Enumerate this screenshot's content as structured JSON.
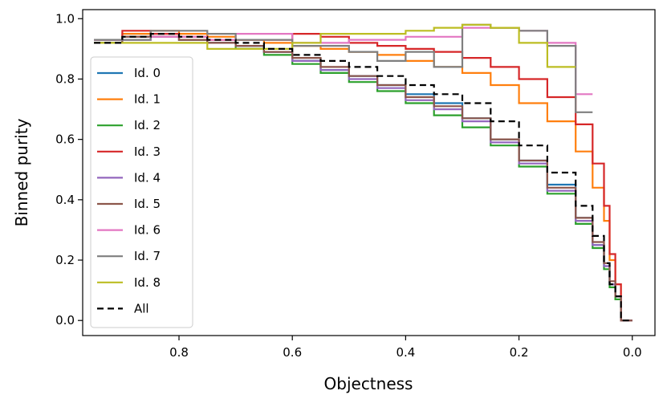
{
  "chart_data": {
    "type": "line",
    "drawstyle": "steps",
    "xlabel": "Objectness",
    "ylabel": "Binned purity",
    "xlim": [
      0.97,
      -0.04
    ],
    "ylim": [
      -0.05,
      1.03
    ],
    "xticks": [
      0.8,
      0.6,
      0.4,
      0.2,
      0.0
    ],
    "xtick_labels": [
      "0.8",
      "0.6",
      "0.4",
      "0.2",
      "0.0"
    ],
    "yticks": [
      0.0,
      0.2,
      0.4,
      0.6,
      0.8,
      1.0
    ],
    "ytick_labels": [
      "0.0",
      "0.2",
      "0.4",
      "0.6",
      "0.8",
      "1.0"
    ],
    "grid": false,
    "legend_position": "left",
    "series": [
      {
        "name": "Id. 0",
        "color": "#1f77b4",
        "dash": "solid",
        "x": [
          0.95,
          0.9,
          0.85,
          0.8,
          0.75,
          0.7,
          0.65,
          0.6,
          0.55,
          0.5,
          0.45,
          0.4,
          0.35,
          0.3,
          0.25,
          0.2,
          0.15,
          0.1,
          0.07,
          0.05,
          0.04,
          0.03,
          0.02,
          0.0
        ],
        "y": [
          0.92,
          0.93,
          0.94,
          0.93,
          0.92,
          0.91,
          0.89,
          0.86,
          0.83,
          0.81,
          0.78,
          0.75,
          0.72,
          0.67,
          0.6,
          0.53,
          0.45,
          0.34,
          0.25,
          0.18,
          0.12,
          0.08,
          0.0,
          0.0
        ]
      },
      {
        "name": "Id. 1",
        "color": "#ff7f0e",
        "dash": "solid",
        "x": [
          0.95,
          0.9,
          0.85,
          0.8,
          0.75,
          0.7,
          0.65,
          0.6,
          0.55,
          0.5,
          0.45,
          0.4,
          0.35,
          0.3,
          0.25,
          0.2,
          0.15,
          0.1,
          0.07,
          0.05,
          0.04,
          0.03,
          0.02,
          0.0
        ],
        "y": [
          0.93,
          0.95,
          0.96,
          0.95,
          0.94,
          0.93,
          0.92,
          0.91,
          0.9,
          0.89,
          0.88,
          0.86,
          0.84,
          0.82,
          0.78,
          0.72,
          0.66,
          0.56,
          0.44,
          0.33,
          0.2,
          0.12,
          0.0,
          0.0
        ]
      },
      {
        "name": "Id. 2",
        "color": "#2ca02c",
        "dash": "solid",
        "x": [
          0.95,
          0.9,
          0.85,
          0.8,
          0.75,
          0.7,
          0.65,
          0.6,
          0.55,
          0.5,
          0.45,
          0.4,
          0.35,
          0.3,
          0.25,
          0.2,
          0.15,
          0.1,
          0.07,
          0.05,
          0.04,
          0.03,
          0.02,
          0.0
        ],
        "y": [
          0.92,
          0.94,
          0.94,
          0.93,
          0.92,
          0.9,
          0.88,
          0.85,
          0.82,
          0.79,
          0.76,
          0.72,
          0.68,
          0.64,
          0.58,
          0.51,
          0.42,
          0.32,
          0.24,
          0.17,
          0.11,
          0.07,
          0.0,
          0.0
        ]
      },
      {
        "name": "Id. 3",
        "color": "#d62728",
        "dash": "solid",
        "x": [
          0.95,
          0.9,
          0.85,
          0.8,
          0.75,
          0.7,
          0.65,
          0.6,
          0.55,
          0.5,
          0.45,
          0.4,
          0.35,
          0.3,
          0.25,
          0.2,
          0.15,
          0.1,
          0.07,
          0.05,
          0.04,
          0.03,
          0.02,
          0.0
        ],
        "y": [
          0.93,
          0.96,
          0.95,
          0.94,
          0.93,
          0.93,
          0.93,
          0.95,
          0.94,
          0.92,
          0.91,
          0.9,
          0.89,
          0.87,
          0.84,
          0.8,
          0.74,
          0.65,
          0.52,
          0.38,
          0.22,
          0.12,
          0.0,
          0.0
        ]
      },
      {
        "name": "Id. 4",
        "color": "#9467bd",
        "dash": "solid",
        "x": [
          0.95,
          0.9,
          0.85,
          0.8,
          0.75,
          0.7,
          0.65,
          0.6,
          0.55,
          0.5,
          0.45,
          0.4,
          0.35,
          0.3,
          0.25,
          0.2,
          0.15,
          0.1,
          0.07,
          0.05,
          0.04,
          0.03,
          0.02,
          0.0
        ],
        "y": [
          0.93,
          0.94,
          0.94,
          0.93,
          0.92,
          0.91,
          0.89,
          0.86,
          0.83,
          0.8,
          0.77,
          0.73,
          0.7,
          0.66,
          0.59,
          0.52,
          0.43,
          0.33,
          0.25,
          0.18,
          0.12,
          0.08,
          0.0,
          0.0
        ]
      },
      {
        "name": "Id. 5",
        "color": "#8c564b",
        "dash": "solid",
        "x": [
          0.95,
          0.9,
          0.85,
          0.8,
          0.75,
          0.7,
          0.65,
          0.6,
          0.55,
          0.5,
          0.45,
          0.4,
          0.35,
          0.3,
          0.25,
          0.2,
          0.15,
          0.1,
          0.07,
          0.05,
          0.04,
          0.03,
          0.02,
          0.0
        ],
        "y": [
          0.92,
          0.94,
          0.94,
          0.93,
          0.92,
          0.91,
          0.89,
          0.87,
          0.84,
          0.81,
          0.78,
          0.74,
          0.71,
          0.67,
          0.6,
          0.53,
          0.44,
          0.34,
          0.26,
          0.19,
          0.13,
          0.08,
          0.0,
          0.0
        ]
      },
      {
        "name": "Id. 6",
        "color": "#e377c2",
        "dash": "solid",
        "x": [
          0.95,
          0.85,
          0.75,
          0.7,
          0.6,
          0.5,
          0.4,
          0.3,
          0.2,
          0.15,
          0.1,
          0.07
        ],
        "y": [
          0.93,
          0.94,
          0.93,
          0.95,
          0.92,
          0.93,
          0.94,
          0.97,
          0.96,
          0.92,
          0.75,
          0.75
        ]
      },
      {
        "name": "Id. 7",
        "color": "#7f7f7f",
        "dash": "solid",
        "x": [
          0.95,
          0.85,
          0.75,
          0.7,
          0.6,
          0.5,
          0.45,
          0.4,
          0.35,
          0.3,
          0.25,
          0.2,
          0.15,
          0.1,
          0.07
        ],
        "y": [
          0.93,
          0.96,
          0.95,
          0.93,
          0.91,
          0.89,
          0.86,
          0.89,
          0.84,
          0.98,
          0.97,
          0.96,
          0.91,
          0.69,
          0.69
        ]
      },
      {
        "name": "Id. 8",
        "color": "#bcbd22",
        "dash": "solid",
        "x": [
          0.95,
          0.75,
          0.7,
          0.6,
          0.55,
          0.45,
          0.4,
          0.35,
          0.3,
          0.25,
          0.2,
          0.15,
          0.12,
          0.1
        ],
        "y": [
          0.92,
          0.9,
          0.9,
          0.92,
          0.95,
          0.95,
          0.96,
          0.97,
          0.98,
          0.97,
          0.92,
          0.84,
          0.84,
          0.84
        ]
      },
      {
        "name": "All",
        "color": "#000000",
        "dash": "dashed",
        "x": [
          0.95,
          0.9,
          0.85,
          0.8,
          0.75,
          0.7,
          0.65,
          0.6,
          0.55,
          0.5,
          0.45,
          0.4,
          0.35,
          0.3,
          0.25,
          0.2,
          0.15,
          0.1,
          0.07,
          0.05,
          0.04,
          0.03,
          0.02,
          0.0
        ],
        "y": [
          0.92,
          0.94,
          0.95,
          0.94,
          0.93,
          0.92,
          0.9,
          0.88,
          0.86,
          0.84,
          0.81,
          0.78,
          0.75,
          0.72,
          0.66,
          0.58,
          0.49,
          0.38,
          0.28,
          0.19,
          0.12,
          0.08,
          0.0,
          0.0
        ]
      }
    ]
  }
}
